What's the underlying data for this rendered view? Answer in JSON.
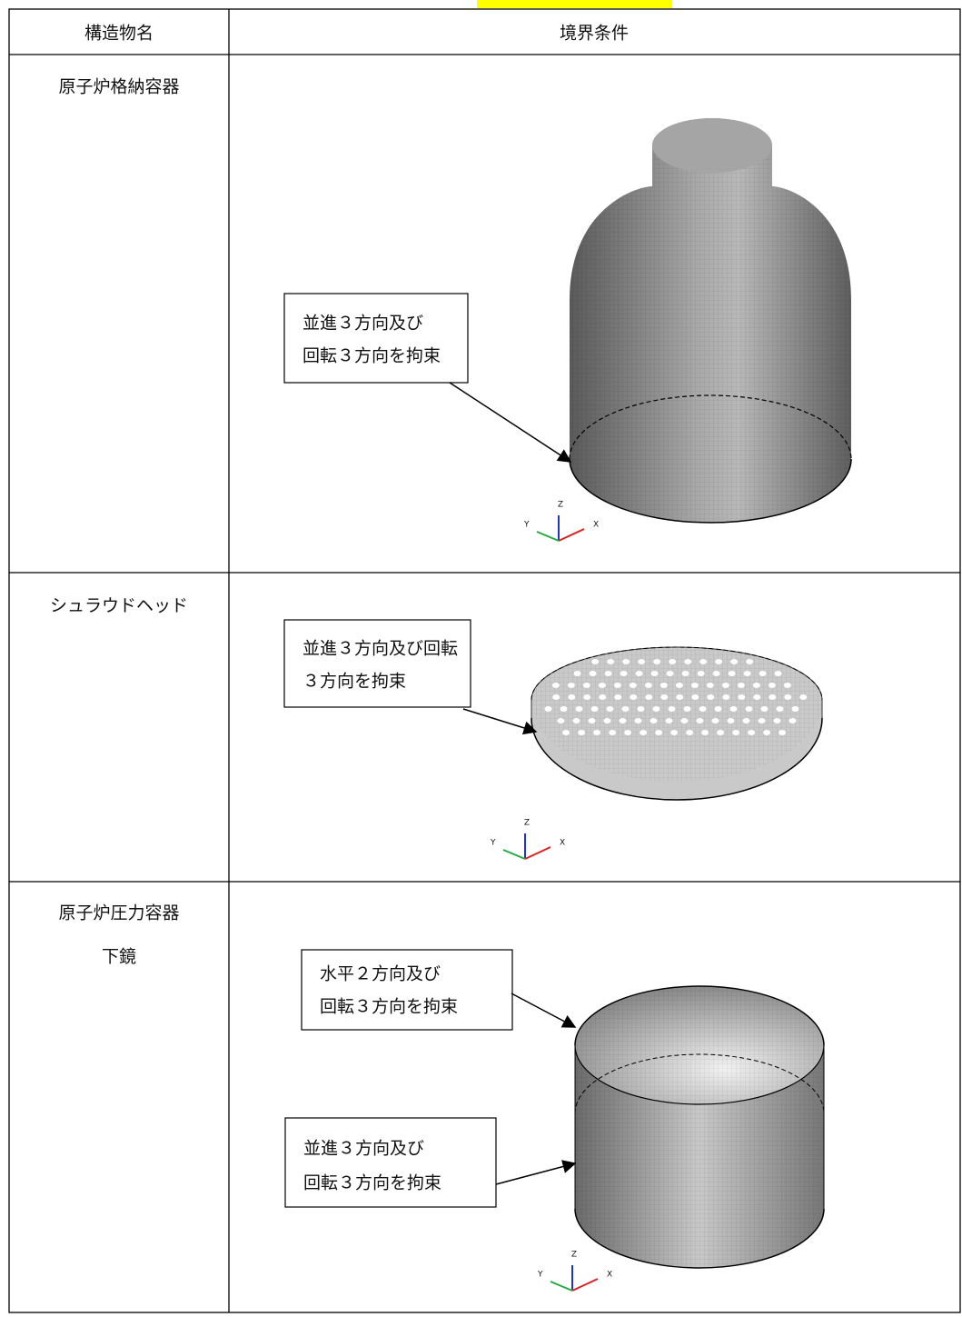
{
  "table": {
    "header": [
      "構造物名",
      "境界条件"
    ],
    "rows": [
      {
        "name": [
          "原子炉格納容器"
        ],
        "callouts": [
          [
            "並進３方向及び",
            "回転３方向を拘束"
          ]
        ]
      },
      {
        "name": [
          "シュラウドヘッド"
        ],
        "callouts": [
          [
            "並進３方向及び回転",
            "３方向を拘束"
          ]
        ]
      },
      {
        "name": [
          "原子炉圧力容器",
          "下鏡"
        ],
        "callouts": [
          [
            "水平２方向及び",
            "回転３方向を拘束"
          ],
          [
            "並進３方向及び",
            "回転３方向を拘束"
          ]
        ]
      }
    ]
  },
  "triad_labels": {
    "z": "Z",
    "y": "Y",
    "x": "X"
  }
}
